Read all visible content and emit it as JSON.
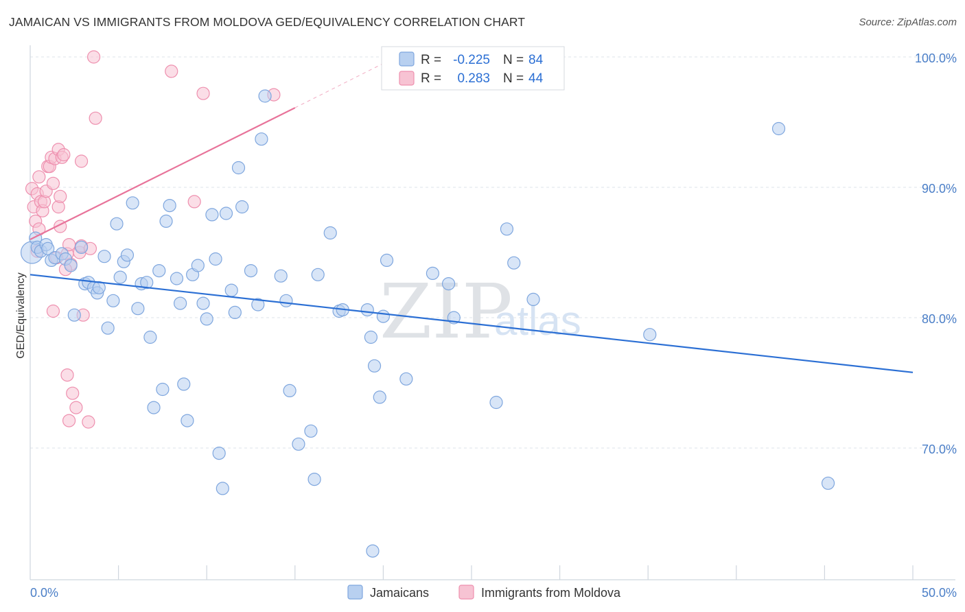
{
  "header": {
    "title": "JAMAICAN VS IMMIGRANTS FROM MOLDOVA GED/EQUIVALENCY CORRELATION CHART",
    "source": "Source: ZipAtlas.com"
  },
  "watermark": {
    "zip": "ZIP",
    "atlas": "atlas"
  },
  "colors": {
    "blue_fill": "#b8d0f0",
    "blue_stroke": "#7ea6de",
    "blue_line": "#2b6fd4",
    "pink_fill": "#f7c3d3",
    "pink_stroke": "#ee8fae",
    "pink_line": "#e8739a",
    "tick_text": "#4a7ec7",
    "grid": "#dde3ea"
  },
  "stats": {
    "r_label": "R =",
    "n_label": "N =",
    "blue": {
      "r": "-0.225",
      "n": "84"
    },
    "pink": {
      "r": "0.283",
      "n": "44"
    }
  },
  "legend": {
    "blue": "Jamaicans",
    "pink": "Immigrants from Moldova"
  },
  "chart_data": {
    "type": "scatter",
    "title": "JAMAICAN VS IMMIGRANTS FROM MOLDOVA GED/EQUIVALENCY CORRELATION CHART",
    "xlabel": "",
    "ylabel": "GED/Equivalency",
    "xlim": [
      0,
      50
    ],
    "ylim": [
      60.5,
      102
    ],
    "x_tick_labels": [
      "0.0%",
      "50.0%"
    ],
    "y_ticks": [
      70,
      80,
      90,
      100
    ],
    "y_tick_labels": [
      "70.0%",
      "80.0%",
      "90.0%",
      "100.0%"
    ],
    "grid": true,
    "series": [
      {
        "name": "Jamaicans",
        "r": -0.225,
        "n": 84,
        "trend": {
          "x": [
            0,
            50
          ],
          "y": [
            83.3,
            75.8
          ]
        },
        "points": [
          [
            0.1,
            85.0,
            16
          ],
          [
            0.3,
            86.1,
            9
          ],
          [
            0.4,
            85.4,
            9
          ],
          [
            0.6,
            85.1,
            9
          ],
          [
            0.9,
            85.6,
            9
          ],
          [
            1.0,
            85.3,
            9
          ],
          [
            1.2,
            84.4,
            9
          ],
          [
            1.4,
            84.6,
            9
          ],
          [
            1.8,
            84.9,
            9
          ],
          [
            2.0,
            84.5,
            9
          ],
          [
            2.3,
            84.0,
            9
          ],
          [
            2.5,
            80.2,
            9
          ],
          [
            2.9,
            85.4,
            9
          ],
          [
            3.1,
            82.6,
            9
          ],
          [
            3.3,
            82.7,
            9
          ],
          [
            3.6,
            82.3,
            9
          ],
          [
            3.8,
            81.9,
            9
          ],
          [
            3.9,
            82.3,
            9
          ],
          [
            4.2,
            84.7,
            9
          ],
          [
            4.4,
            79.2,
            9
          ],
          [
            4.7,
            81.3,
            9
          ],
          [
            4.9,
            87.2,
            9
          ],
          [
            5.1,
            83.1,
            9
          ],
          [
            5.3,
            84.3,
            9
          ],
          [
            5.5,
            84.8,
            9
          ],
          [
            5.8,
            88.8,
            9
          ],
          [
            6.1,
            80.7,
            9
          ],
          [
            6.3,
            82.6,
            9
          ],
          [
            6.6,
            82.7,
            9
          ],
          [
            6.8,
            78.5,
            9
          ],
          [
            7.0,
            73.1,
            9
          ],
          [
            7.3,
            83.6,
            9
          ],
          [
            7.5,
            74.5,
            9
          ],
          [
            7.7,
            87.4,
            9
          ],
          [
            7.9,
            88.6,
            9
          ],
          [
            8.3,
            83.0,
            9
          ],
          [
            8.5,
            81.1,
            9
          ],
          [
            8.7,
            74.9,
            9
          ],
          [
            8.9,
            72.1,
            9
          ],
          [
            9.2,
            83.3,
            9
          ],
          [
            9.5,
            84.0,
            9
          ],
          [
            9.8,
            81.1,
            9
          ],
          [
            10.0,
            79.9,
            9
          ],
          [
            10.3,
            87.9,
            9
          ],
          [
            10.5,
            84.5,
            9
          ],
          [
            10.7,
            69.6,
            9
          ],
          [
            10.9,
            66.9,
            9
          ],
          [
            11.1,
            88.0,
            9
          ],
          [
            11.4,
            82.1,
            9
          ],
          [
            11.6,
            80.4,
            9
          ],
          [
            11.8,
            91.5,
            9
          ],
          [
            12.0,
            88.5,
            9
          ],
          [
            12.5,
            83.6,
            9
          ],
          [
            12.9,
            81.0,
            9
          ],
          [
            13.1,
            93.7,
            9
          ],
          [
            13.3,
            97.0,
            9
          ],
          [
            14.2,
            83.2,
            9
          ],
          [
            14.5,
            81.3,
            9
          ],
          [
            14.7,
            74.4,
            9
          ],
          [
            15.2,
            70.3,
            9
          ],
          [
            15.9,
            71.3,
            9
          ],
          [
            16.1,
            67.6,
            9
          ],
          [
            16.3,
            83.3,
            9
          ],
          [
            17.0,
            86.5,
            9
          ],
          [
            17.5,
            80.5,
            9
          ],
          [
            17.7,
            80.6,
            9
          ],
          [
            19.1,
            80.6,
            9
          ],
          [
            19.3,
            78.5,
            9
          ],
          [
            19.5,
            76.3,
            9
          ],
          [
            19.8,
            73.9,
            9
          ],
          [
            19.4,
            62.1,
            9
          ],
          [
            20.0,
            80.1,
            9
          ],
          [
            20.2,
            84.4,
            9
          ],
          [
            21.3,
            75.3,
            9
          ],
          [
            22.8,
            83.4,
            9
          ],
          [
            23.7,
            82.6,
            9
          ],
          [
            24.0,
            80.0,
            9
          ],
          [
            26.4,
            73.5,
            9
          ],
          [
            27.0,
            86.8,
            9
          ],
          [
            27.4,
            84.2,
            9
          ],
          [
            28.5,
            81.4,
            9
          ],
          [
            35.1,
            78.7,
            9
          ],
          [
            42.4,
            94.5,
            9
          ],
          [
            45.2,
            67.3,
            9
          ]
        ]
      },
      {
        "name": "Immigrants from Moldova",
        "r": 0.283,
        "n": 44,
        "trend": {
          "x": [
            0,
            15
          ],
          "y": [
            86.0,
            96.1
          ],
          "dashed_to": [
            20,
            99.5
          ]
        },
        "points": [
          [
            0.1,
            89.9,
            9
          ],
          [
            0.2,
            88.5,
            9
          ],
          [
            0.3,
            87.4,
            9
          ],
          [
            0.4,
            89.5,
            9
          ],
          [
            0.5,
            90.8,
            9
          ],
          [
            0.5,
            86.8,
            9
          ],
          [
            0.6,
            88.9,
            9
          ],
          [
            0.7,
            88.2,
            9
          ],
          [
            0.8,
            88.9,
            9
          ],
          [
            0.9,
            89.7,
            9
          ],
          [
            1.0,
            91.6,
            9
          ],
          [
            1.1,
            91.6,
            9
          ],
          [
            1.2,
            92.3,
            9
          ],
          [
            1.3,
            90.3,
            9
          ],
          [
            1.4,
            92.2,
            9
          ],
          [
            1.3,
            80.5,
            9
          ],
          [
            1.6,
            88.5,
            9
          ],
          [
            1.6,
            92.9,
            9
          ],
          [
            1.7,
            87.0,
            9
          ],
          [
            1.7,
            89.3,
            9
          ],
          [
            1.8,
            92.3,
            9
          ],
          [
            1.9,
            92.5,
            9
          ],
          [
            2.1,
            84.9,
            9
          ],
          [
            2.3,
            84.1,
            9
          ],
          [
            2.1,
            75.6,
            9
          ],
          [
            2.2,
            72.1,
            9
          ],
          [
            2.4,
            74.2,
            9
          ],
          [
            2.6,
            73.1,
            9
          ],
          [
            2.8,
            85.0,
            9
          ],
          [
            2.9,
            92.0,
            9
          ],
          [
            2.9,
            85.5,
            9
          ],
          [
            3.0,
            80.2,
            9
          ],
          [
            3.3,
            72.0,
            9
          ],
          [
            3.6,
            100.0,
            9
          ],
          [
            3.7,
            95.3,
            9
          ],
          [
            8.0,
            98.9,
            9
          ],
          [
            9.3,
            88.9,
            9
          ],
          [
            9.8,
            97.2,
            9
          ],
          [
            13.8,
            97.1,
            9
          ],
          [
            2.2,
            85.6,
            9
          ],
          [
            0.4,
            85.1,
            9
          ],
          [
            1.5,
            84.6,
            9
          ],
          [
            2.0,
            83.7,
            9
          ],
          [
            3.4,
            85.3,
            9
          ]
        ]
      }
    ]
  }
}
